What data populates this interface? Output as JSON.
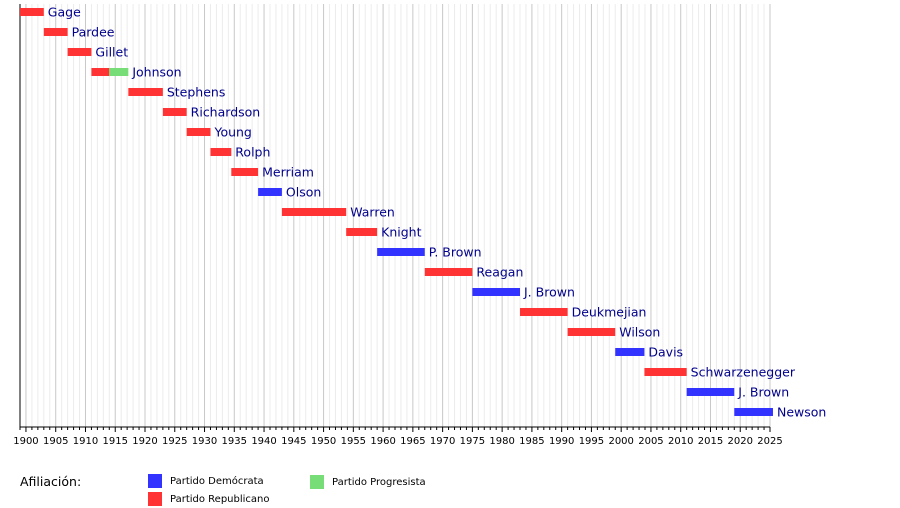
{
  "chart_data": {
    "type": "timeline",
    "x_range": [
      1899,
      2025
    ],
    "x_ticks": [
      1900,
      1905,
      1910,
      1915,
      1920,
      1925,
      1930,
      1935,
      1940,
      1945,
      1950,
      1955,
      1960,
      1965,
      1970,
      1975,
      1980,
      1985,
      1990,
      1995,
      2000,
      2005,
      2010,
      2015,
      2020,
      2025
    ],
    "grid": true,
    "minor_grid_step": 1,
    "governors": [
      {
        "label": "Gage",
        "segments": [
          {
            "party": "republican",
            "start": 1899,
            "end": 1903
          }
        ]
      },
      {
        "label": "Pardee",
        "segments": [
          {
            "party": "republican",
            "start": 1903,
            "end": 1907
          }
        ]
      },
      {
        "label": "Gillet",
        "segments": [
          {
            "party": "republican",
            "start": 1907,
            "end": 1911
          }
        ]
      },
      {
        "label": "Johnson",
        "segments": [
          {
            "party": "republican",
            "start": 1911,
            "end": 1914
          },
          {
            "party": "progressive",
            "start": 1914,
            "end": 1917.2
          }
        ]
      },
      {
        "label": "Stephens",
        "segments": [
          {
            "party": "republican",
            "start": 1917.2,
            "end": 1923
          }
        ]
      },
      {
        "label": "Richardson",
        "segments": [
          {
            "party": "republican",
            "start": 1923,
            "end": 1927
          }
        ]
      },
      {
        "label": "Young",
        "segments": [
          {
            "party": "republican",
            "start": 1927,
            "end": 1931
          }
        ]
      },
      {
        "label": "Rolph",
        "segments": [
          {
            "party": "republican",
            "start": 1931,
            "end": 1934.5
          }
        ]
      },
      {
        "label": "Merriam",
        "segments": [
          {
            "party": "republican",
            "start": 1934.5,
            "end": 1939
          }
        ]
      },
      {
        "label": "Olson",
        "segments": [
          {
            "party": "democratic",
            "start": 1939,
            "end": 1943
          }
        ]
      },
      {
        "label": "Warren",
        "segments": [
          {
            "party": "republican",
            "start": 1943,
            "end": 1953.8
          }
        ]
      },
      {
        "label": "Knight",
        "segments": [
          {
            "party": "republican",
            "start": 1953.8,
            "end": 1959
          }
        ]
      },
      {
        "label": "P. Brown",
        "segments": [
          {
            "party": "democratic",
            "start": 1959,
            "end": 1967
          }
        ]
      },
      {
        "label": "Reagan",
        "segments": [
          {
            "party": "republican",
            "start": 1967,
            "end": 1975
          }
        ]
      },
      {
        "label": "J. Brown",
        "segments": [
          {
            "party": "democratic",
            "start": 1975,
            "end": 1983
          }
        ]
      },
      {
        "label": "Deukmejian",
        "segments": [
          {
            "party": "republican",
            "start": 1983,
            "end": 1991
          }
        ]
      },
      {
        "label": "Wilson",
        "segments": [
          {
            "party": "republican",
            "start": 1991,
            "end": 1999
          }
        ]
      },
      {
        "label": "Davis",
        "segments": [
          {
            "party": "democratic",
            "start": 1999,
            "end": 2003.9
          }
        ]
      },
      {
        "label": "Schwarzenegger",
        "segments": [
          {
            "party": "republican",
            "start": 2003.9,
            "end": 2011
          }
        ]
      },
      {
        "label": "J. Brown",
        "segments": [
          {
            "party": "democratic",
            "start": 2011,
            "end": 2019
          }
        ]
      },
      {
        "label": "Newson",
        "segments": [
          {
            "party": "democratic",
            "start": 2019,
            "end": 2025.5
          }
        ]
      }
    ],
    "parties": {
      "democratic": {
        "name": "Partido Demócrata",
        "color": "#3333ff"
      },
      "republican": {
        "name": "Partido Republicano",
        "color": "#ff3333"
      },
      "progressive": {
        "name": "Partido Progresista",
        "color": "#77dd77"
      }
    },
    "legend_title": "Afiliación:"
  }
}
